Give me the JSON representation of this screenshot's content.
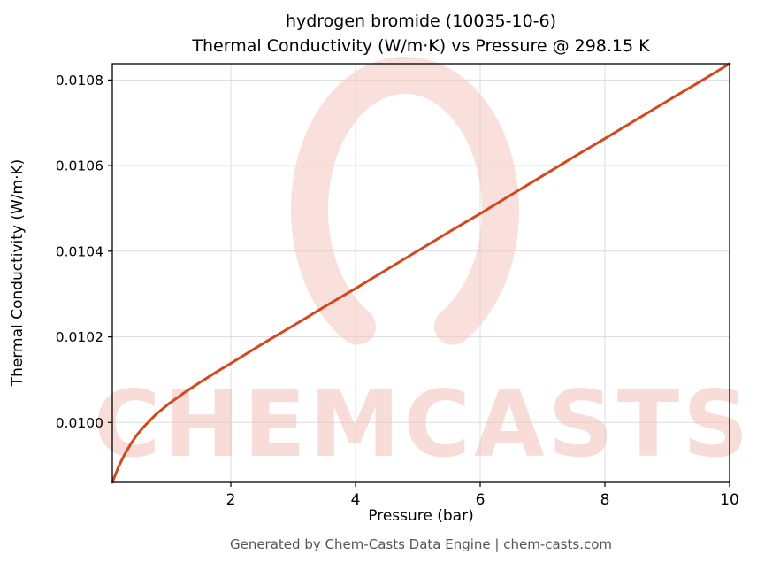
{
  "chart_data": {
    "type": "line",
    "title_line1": "hydrogen bromide (10035-10-6)",
    "title_line2": "Thermal Conductivity (W/m·K) vs Pressure @ 298.15 K",
    "xlabel": "Pressure (bar)",
    "ylabel": "Thermal Conductivity (W/m·K)",
    "series_name": "thermal conductivity vs pressure",
    "x": [
      0.1,
      0.2,
      0.3,
      0.4,
      0.5,
      0.6,
      0.8,
      1.0,
      1.25,
      1.5,
      1.75,
      2.0,
      2.5,
      3.0,
      3.5,
      4.0,
      4.5,
      5.0,
      5.5,
      6.0,
      6.5,
      7.0,
      7.5,
      8.0,
      8.5,
      9.0,
      9.5,
      10.0
    ],
    "y": [
      0.00986,
      0.009897,
      0.009926,
      0.009951,
      0.009972,
      0.009989,
      0.010019,
      0.010043,
      0.010069,
      0.010093,
      0.010116,
      0.010138,
      0.010183,
      0.010226,
      0.01027,
      0.010313,
      0.010357,
      0.010401,
      0.010445,
      0.010488,
      0.010532,
      0.010576,
      0.01062,
      0.010663,
      0.010707,
      0.010751,
      0.010794,
      0.010838
    ],
    "xlim": [
      0.1,
      10
    ],
    "ylim": [
      0.00986,
      0.010838
    ],
    "xticks": [
      2,
      4,
      6,
      8,
      10
    ],
    "xtick_labels": [
      "2",
      "4",
      "6",
      "8",
      "10"
    ],
    "yticks": [
      0.01,
      0.0102,
      0.0104,
      0.0106,
      0.0108
    ],
    "ytick_labels": [
      "0.0100",
      "0.0102",
      "0.0104",
      "0.0106",
      "0.0108"
    ],
    "grid": true,
    "legend": "none",
    "line_color": "#d2491d"
  },
  "watermark": {
    "text": "CHEMCASTS",
    "color": "#f3c1b9"
  },
  "footer": {
    "text": "Generated by Chem-Casts Data Engine | chem-casts.com"
  }
}
